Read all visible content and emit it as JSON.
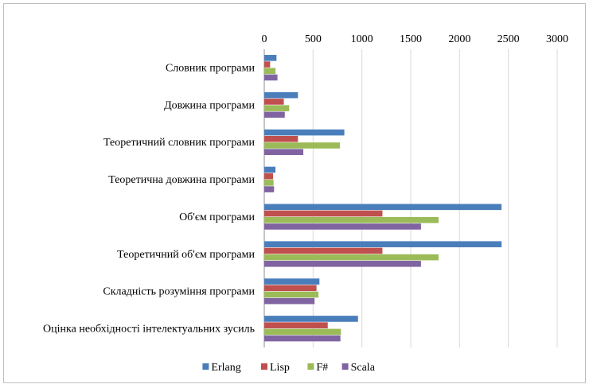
{
  "chart_data": {
    "type": "bar",
    "orientation": "horizontal",
    "title": "",
    "xlabel": "",
    "ylabel": "",
    "xlim": [
      0,
      3000
    ],
    "xticks": [
      0,
      500,
      1000,
      1500,
      2000,
      2500,
      3000
    ],
    "x_axis_position": "top",
    "grid": true,
    "legend": "bottom",
    "categories": [
      "Словник програми",
      "Довжина програми",
      "Теоретичний словник програми",
      "Теоретична довжина програми",
      "Об'єм програми",
      "Теоретичний об'єм програми",
      "Складність розуміння програми",
      "Оцінка необхідності інтелектуальних зусиль"
    ],
    "series": [
      {
        "name": "Erlang",
        "color": "#4a7ebb",
        "values": [
          125,
          345,
          820,
          115,
          2430,
          2430,
          565,
          960
        ]
      },
      {
        "name": "Lisp",
        "color": "#c0504d",
        "values": [
          60,
          200,
          345,
          90,
          1210,
          1210,
          535,
          650
        ]
      },
      {
        "name": "F#",
        "color": "#9bbb59",
        "values": [
          115,
          255,
          775,
          95,
          1785,
          1785,
          555,
          785
        ]
      },
      {
        "name": "Scala",
        "color": "#8064a2",
        "values": [
          135,
          210,
          400,
          100,
          1605,
          1605,
          515,
          780
        ]
      }
    ]
  }
}
